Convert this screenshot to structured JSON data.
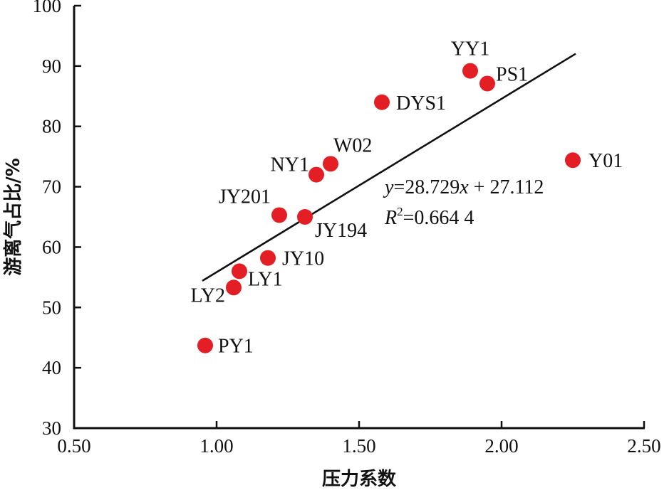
{
  "chart_data": {
    "type": "scatter",
    "xlabel": "压力系数",
    "ylabel": "游离气占比/%",
    "xlim": [
      0.5,
      2.5
    ],
    "ylim": [
      30,
      100
    ],
    "xticks": [
      "0.50",
      "1.00",
      "1.50",
      "2.00",
      "2.50"
    ],
    "yticks": [
      "30",
      "40",
      "50",
      "60",
      "70",
      "80",
      "90",
      "100"
    ],
    "grid": false,
    "points": [
      {
        "label": "YY1",
        "x": 1.89,
        "y": 89.2
      },
      {
        "label": "PS1",
        "x": 1.95,
        "y": 87.1
      },
      {
        "label": "DYS1",
        "x": 1.58,
        "y": 84.0
      },
      {
        "label": "Y01",
        "x": 2.25,
        "y": 74.4
      },
      {
        "label": "W02",
        "x": 1.4,
        "y": 73.8
      },
      {
        "label": "NY1",
        "x": 1.35,
        "y": 72.0
      },
      {
        "label": "JY201",
        "x": 1.22,
        "y": 65.3
      },
      {
        "label": "JY194",
        "x": 1.31,
        "y": 65.0
      },
      {
        "label": "JY10",
        "x": 1.18,
        "y": 58.2
      },
      {
        "label": "LY1",
        "x": 1.08,
        "y": 56.0
      },
      {
        "label": "LY2",
        "x": 1.06,
        "y": 53.3
      },
      {
        "label": "PY1",
        "x": 0.96,
        "y": 43.7
      }
    ],
    "trendline": {
      "slope": 28.729,
      "intercept": 27.112,
      "x_range": [
        0.96,
        2.25
      ],
      "equation": {
        "y": "y",
        "eq_rest": "=28.729",
        "x": "x",
        "plus": " + 27.112"
      },
      "r2": {
        "R": "R",
        "sup": "2",
        "value": "=0.664 4"
      }
    },
    "colors": {
      "point": "#e31e24",
      "line": "#111111"
    }
  }
}
